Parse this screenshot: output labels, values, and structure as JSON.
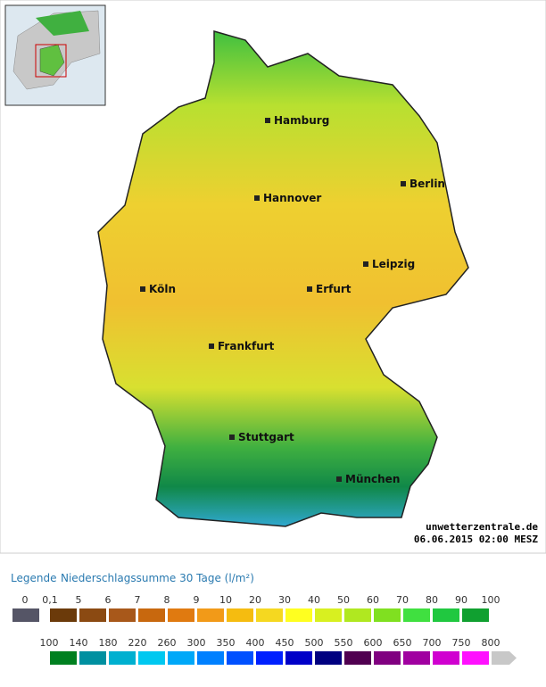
{
  "map": {
    "cities": [
      "Hamburg",
      "Berlin",
      "Hannover",
      "Leipzig",
      "Köln",
      "Erfurt",
      "Frankfurt",
      "Stuttgart",
      "München"
    ],
    "watermark": "unwetterzentrale.de",
    "timestamp": "06.06.2015 02:00 MESZ"
  },
  "legend": {
    "title": "Legende",
    "subtitle": "Niederschlagssumme 30 Tage  (l/m²)",
    "rows": [
      {
        "labels": [
          "0",
          "0,1",
          "5",
          "6",
          "7",
          "8",
          "9",
          "10",
          "20",
          "30",
          "40",
          "50",
          "60",
          "70",
          "80",
          "90",
          "100"
        ],
        "colors": [
          "#555566",
          "#6b3a0a",
          "#8b4a12",
          "#a8581a",
          "#c8680e",
          "#e07a10",
          "#f29a18",
          "#f5bc10",
          "#f5d820",
          "#ffff20",
          "#d8f020",
          "#b0e820",
          "#80e020",
          "#40e040",
          "#20c840",
          "#10a030"
        ]
      },
      {
        "labels": [
          "100",
          "140",
          "180",
          "220",
          "260",
          "300",
          "350",
          "400",
          "450",
          "500",
          "550",
          "600",
          "650",
          "700",
          "750",
          "800"
        ],
        "colors": [
          "#008020",
          "#0090a0",
          "#00b0d0",
          "#00c8f0",
          "#00a8f8",
          "#0080ff",
          "#0050ff",
          "#0020ff",
          "#0000c8",
          "#000080",
          "#500050",
          "#800080",
          "#a000a0",
          "#d000d0",
          "#ff10ff"
        ]
      }
    ]
  }
}
